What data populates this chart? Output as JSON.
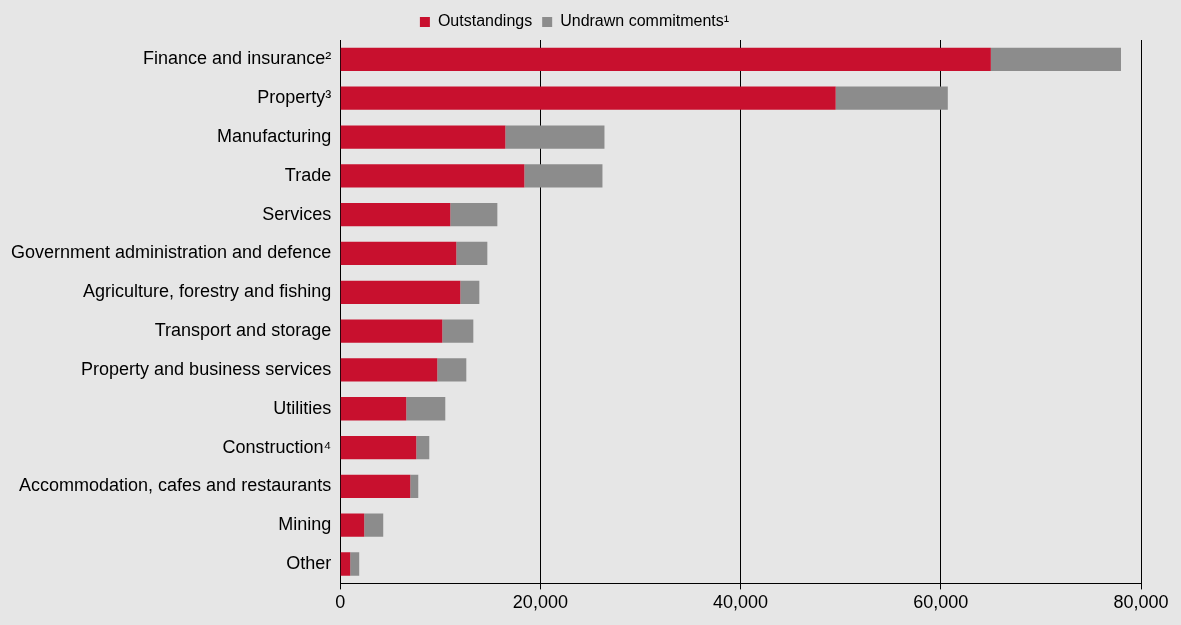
{
  "chart_data": {
    "type": "bar",
    "orientation": "horizontal",
    "stacked": true,
    "categories": [
      "Finance and insurance²",
      "Property³",
      "Manufacturing",
      "Trade",
      "Services",
      "Government administration and defence",
      "Agriculture, forestry and fishing",
      "Transport and storage",
      "Property and business services",
      "Utilities",
      "Construction⁴",
      "Accommodation, cafes and restaurants",
      "Mining",
      "Other"
    ],
    "series": [
      {
        "name": "Outstandings",
        "color": "#c8102e",
        "values": [
          65000,
          49500,
          16500,
          18400,
          11000,
          11600,
          12000,
          10200,
          9700,
          6600,
          7600,
          7000,
          2400,
          1000
        ]
      },
      {
        "name": "Undrawn commitments¹",
        "color": "#8c8c8c",
        "values": [
          13000,
          11200,
          9900,
          7800,
          4700,
          3100,
          1900,
          3100,
          2900,
          3900,
          1300,
          800,
          1900,
          900
        ]
      }
    ],
    "xlim": [
      0,
      80000
    ],
    "xticks": [
      0,
      {
        "value": 20000,
        "label": "20,000"
      },
      {
        "value": 40000,
        "label": "40,000"
      },
      {
        "value": 60000,
        "label": "60,000"
      },
      {
        "value": 80000,
        "label": "80,000"
      }
    ],
    "grid": "x",
    "legend": "top"
  }
}
